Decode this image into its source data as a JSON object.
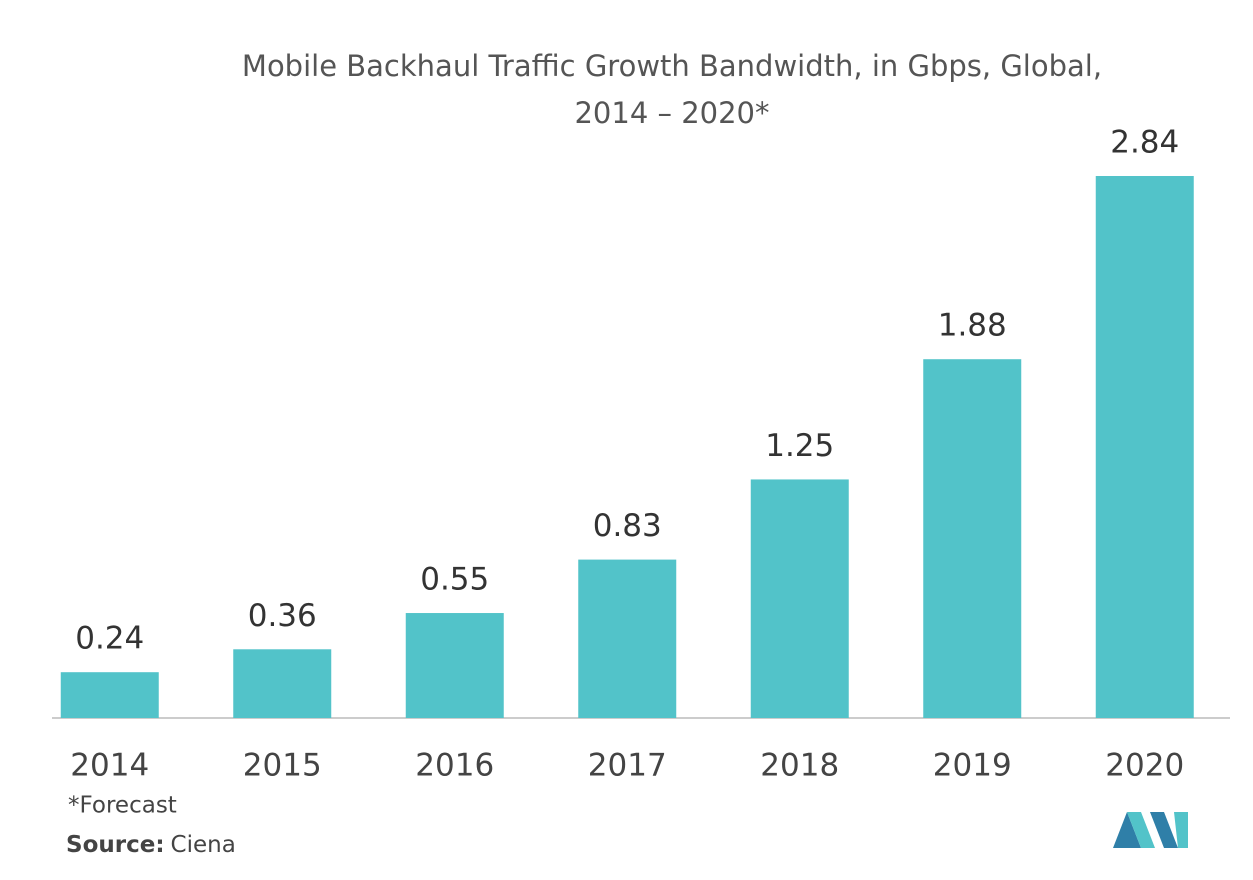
{
  "chart_data": {
    "type": "bar",
    "title": [
      "Mobile Backhaul Traffic Growth Bandwidth, in Gbps, Global,",
      "2014 – 2020*"
    ],
    "categories": [
      "2014",
      "2015",
      "2016",
      "2017",
      "2018",
      "2019",
      "2020"
    ],
    "values": [
      0.24,
      0.36,
      0.55,
      0.83,
      1.25,
      1.88,
      2.84
    ],
    "color": "#52c3c9",
    "footnote": "*Forecast",
    "source": {
      "label": "Source:",
      "text": "Ciena"
    }
  }
}
